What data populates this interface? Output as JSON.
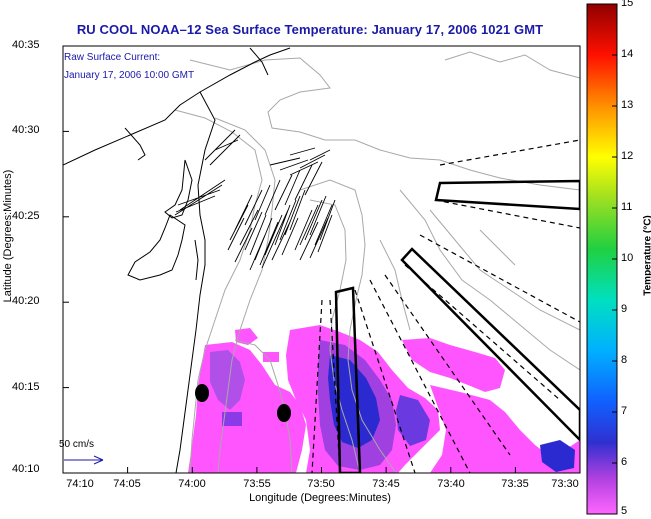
{
  "title": "RU COOL  NOAA–12  Sea Surface Temperature:  January 17, 2006 1021 GMT",
  "legend": {
    "line1": "Raw Surface Current:",
    "line2": "January 17, 2006 10:00 GMT",
    "scale_label": "50 cm/s"
  },
  "axes": {
    "xlabel": "Longitude (Degrees:Minutes)",
    "ylabel": "Latitude (Degrees:Minutes)",
    "xticks": [
      "74:10",
      "74:05",
      "74:00",
      "73:55",
      "73:50",
      "73:45",
      "73:40",
      "73:35",
      "73:30"
    ],
    "yticks": [
      "40:35",
      "40:30",
      "40:25",
      "40:20",
      "40:15",
      "40:10"
    ]
  },
  "colorbar": {
    "label": "Temperature (°C)",
    "ticks": [
      "15",
      "14",
      "13",
      "12",
      "11",
      "10",
      "9",
      "8",
      "7",
      "6",
      "5"
    ],
    "min": 5,
    "max": 15,
    "colors": [
      "#ff55ff",
      "#8a2be2",
      "#0000cd",
      "#1e90ff",
      "#00bfff",
      "#00e0c0",
      "#00c000",
      "#b0e000",
      "#ffff00",
      "#ff8000",
      "#ff0000",
      "#8b0000"
    ]
  },
  "colors": {
    "title": "#1a1aa8",
    "sst_warm": "#ff55ff",
    "sst_mid": "#a040e0",
    "sst_cold": "#2a2ad0"
  }
}
